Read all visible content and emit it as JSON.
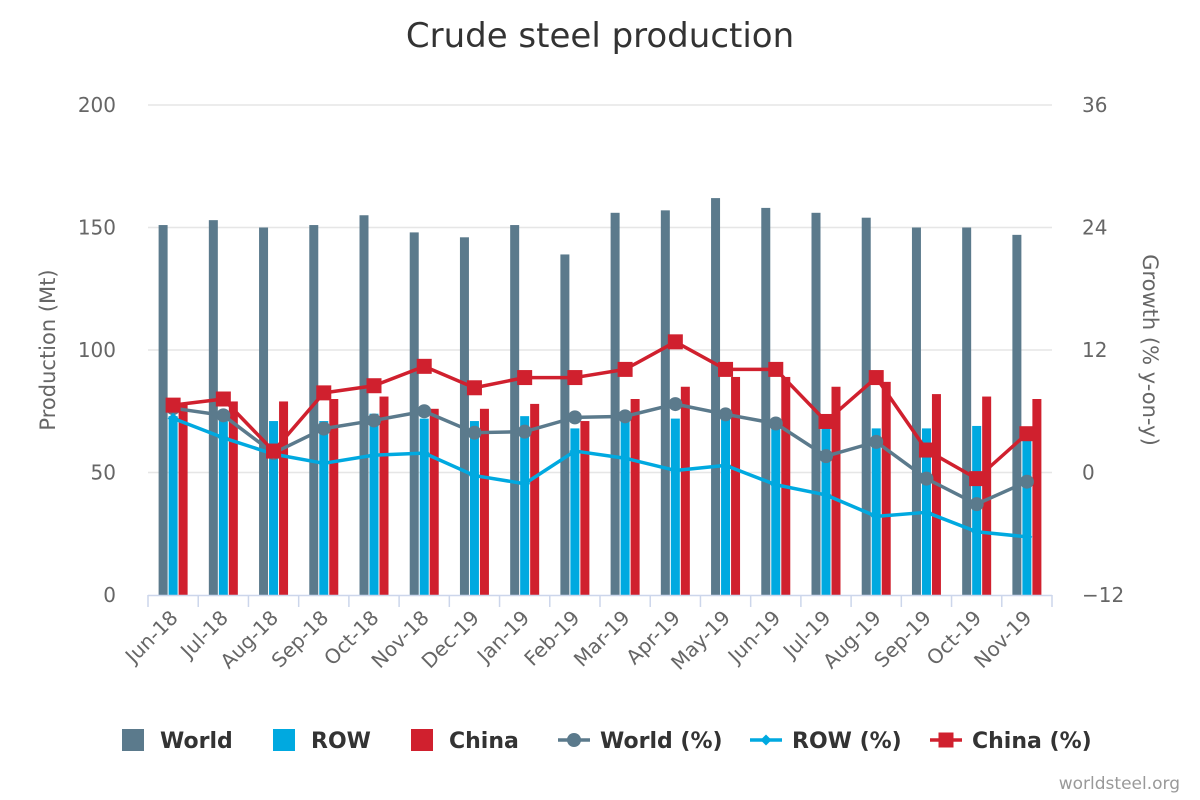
{
  "chart_data": {
    "type": "bar",
    "title": "Crude steel production",
    "ylabel": "Production (Mt)",
    "y2label": "Growth (% y-on-y)",
    "ylim": [
      0,
      200
    ],
    "y2lim": [
      -12,
      36
    ],
    "yticks": [
      "0",
      "50",
      "100",
      "150",
      "200"
    ],
    "y2ticks": [
      "−12",
      "0",
      "12",
      "24",
      "36"
    ],
    "grid": true,
    "legend_position": "bottom",
    "categories": [
      "Jun-18",
      "Jul-18",
      "Aug-18",
      "Sep-18",
      "Oct-18",
      "Nov-18",
      "Dec-19",
      "Jan-19",
      "Feb-19",
      "Mar-19",
      "Apr-19",
      "May-19",
      "Jun-19",
      "Jul-19",
      "Aug-19",
      "Sep-19",
      "Oct-19",
      "Nov-19"
    ],
    "bar_series": [
      {
        "name": "World",
        "color": "#5b7a8c",
        "values": [
          151,
          153,
          150,
          151,
          155,
          148,
          146,
          151,
          139,
          156,
          157,
          162,
          158,
          156,
          154,
          150,
          150,
          147
        ]
      },
      {
        "name": "ROW",
        "color": "#00a9e0",
        "values": [
          73,
          74,
          71,
          71,
          74,
          72,
          71,
          73,
          68,
          73,
          72,
          74,
          70,
          69,
          68,
          68,
          69,
          67
        ]
      },
      {
        "name": "China",
        "color": "#d0202e",
        "values": [
          78,
          79,
          79,
          80,
          81,
          76,
          76,
          78,
          71,
          80,
          85,
          89,
          89,
          85,
          87,
          82,
          81,
          80
        ]
      }
    ],
    "line_series": [
      {
        "name": "World (%)",
        "color": "#5b7a8c",
        "marker": "circle",
        "values": [
          6.3,
          5.6,
          1.9,
          4.3,
          5.1,
          6.0,
          3.9,
          4.0,
          5.4,
          5.5,
          6.7,
          5.7,
          4.8,
          1.6,
          3.0,
          -0.6,
          -3.1,
          -0.9
        ]
      },
      {
        "name": "ROW (%)",
        "color": "#00a9e0",
        "marker": "diamond",
        "values": [
          5.3,
          3.4,
          1.8,
          0.9,
          1.7,
          1.9,
          -0.3,
          -1.1,
          2.1,
          1.4,
          0.2,
          0.7,
          -1.2,
          -2.2,
          -4.3,
          -3.9,
          -5.8,
          -6.3
        ]
      },
      {
        "name": "China (%)",
        "color": "#d0202e",
        "marker": "square",
        "values": [
          6.6,
          7.2,
          2.1,
          7.8,
          8.5,
          10.4,
          8.3,
          9.3,
          9.3,
          10.1,
          12.8,
          10.1,
          10.1,
          5.0,
          9.3,
          2.2,
          -0.6,
          3.8
        ]
      }
    ]
  },
  "legend_items": [
    {
      "label": "World",
      "kind": "bar",
      "color": "#5b7a8c"
    },
    {
      "label": "ROW",
      "kind": "bar",
      "color": "#00a9e0"
    },
    {
      "label": "China",
      "kind": "bar",
      "color": "#d0202e"
    },
    {
      "label": "World (%)",
      "kind": "line-circle",
      "color": "#5b7a8c"
    },
    {
      "label": "ROW (%)",
      "kind": "line-diamond",
      "color": "#00a9e0"
    },
    {
      "label": "China (%)",
      "kind": "line-square",
      "color": "#d0202e"
    }
  ],
  "credit": "worldsteel.org"
}
